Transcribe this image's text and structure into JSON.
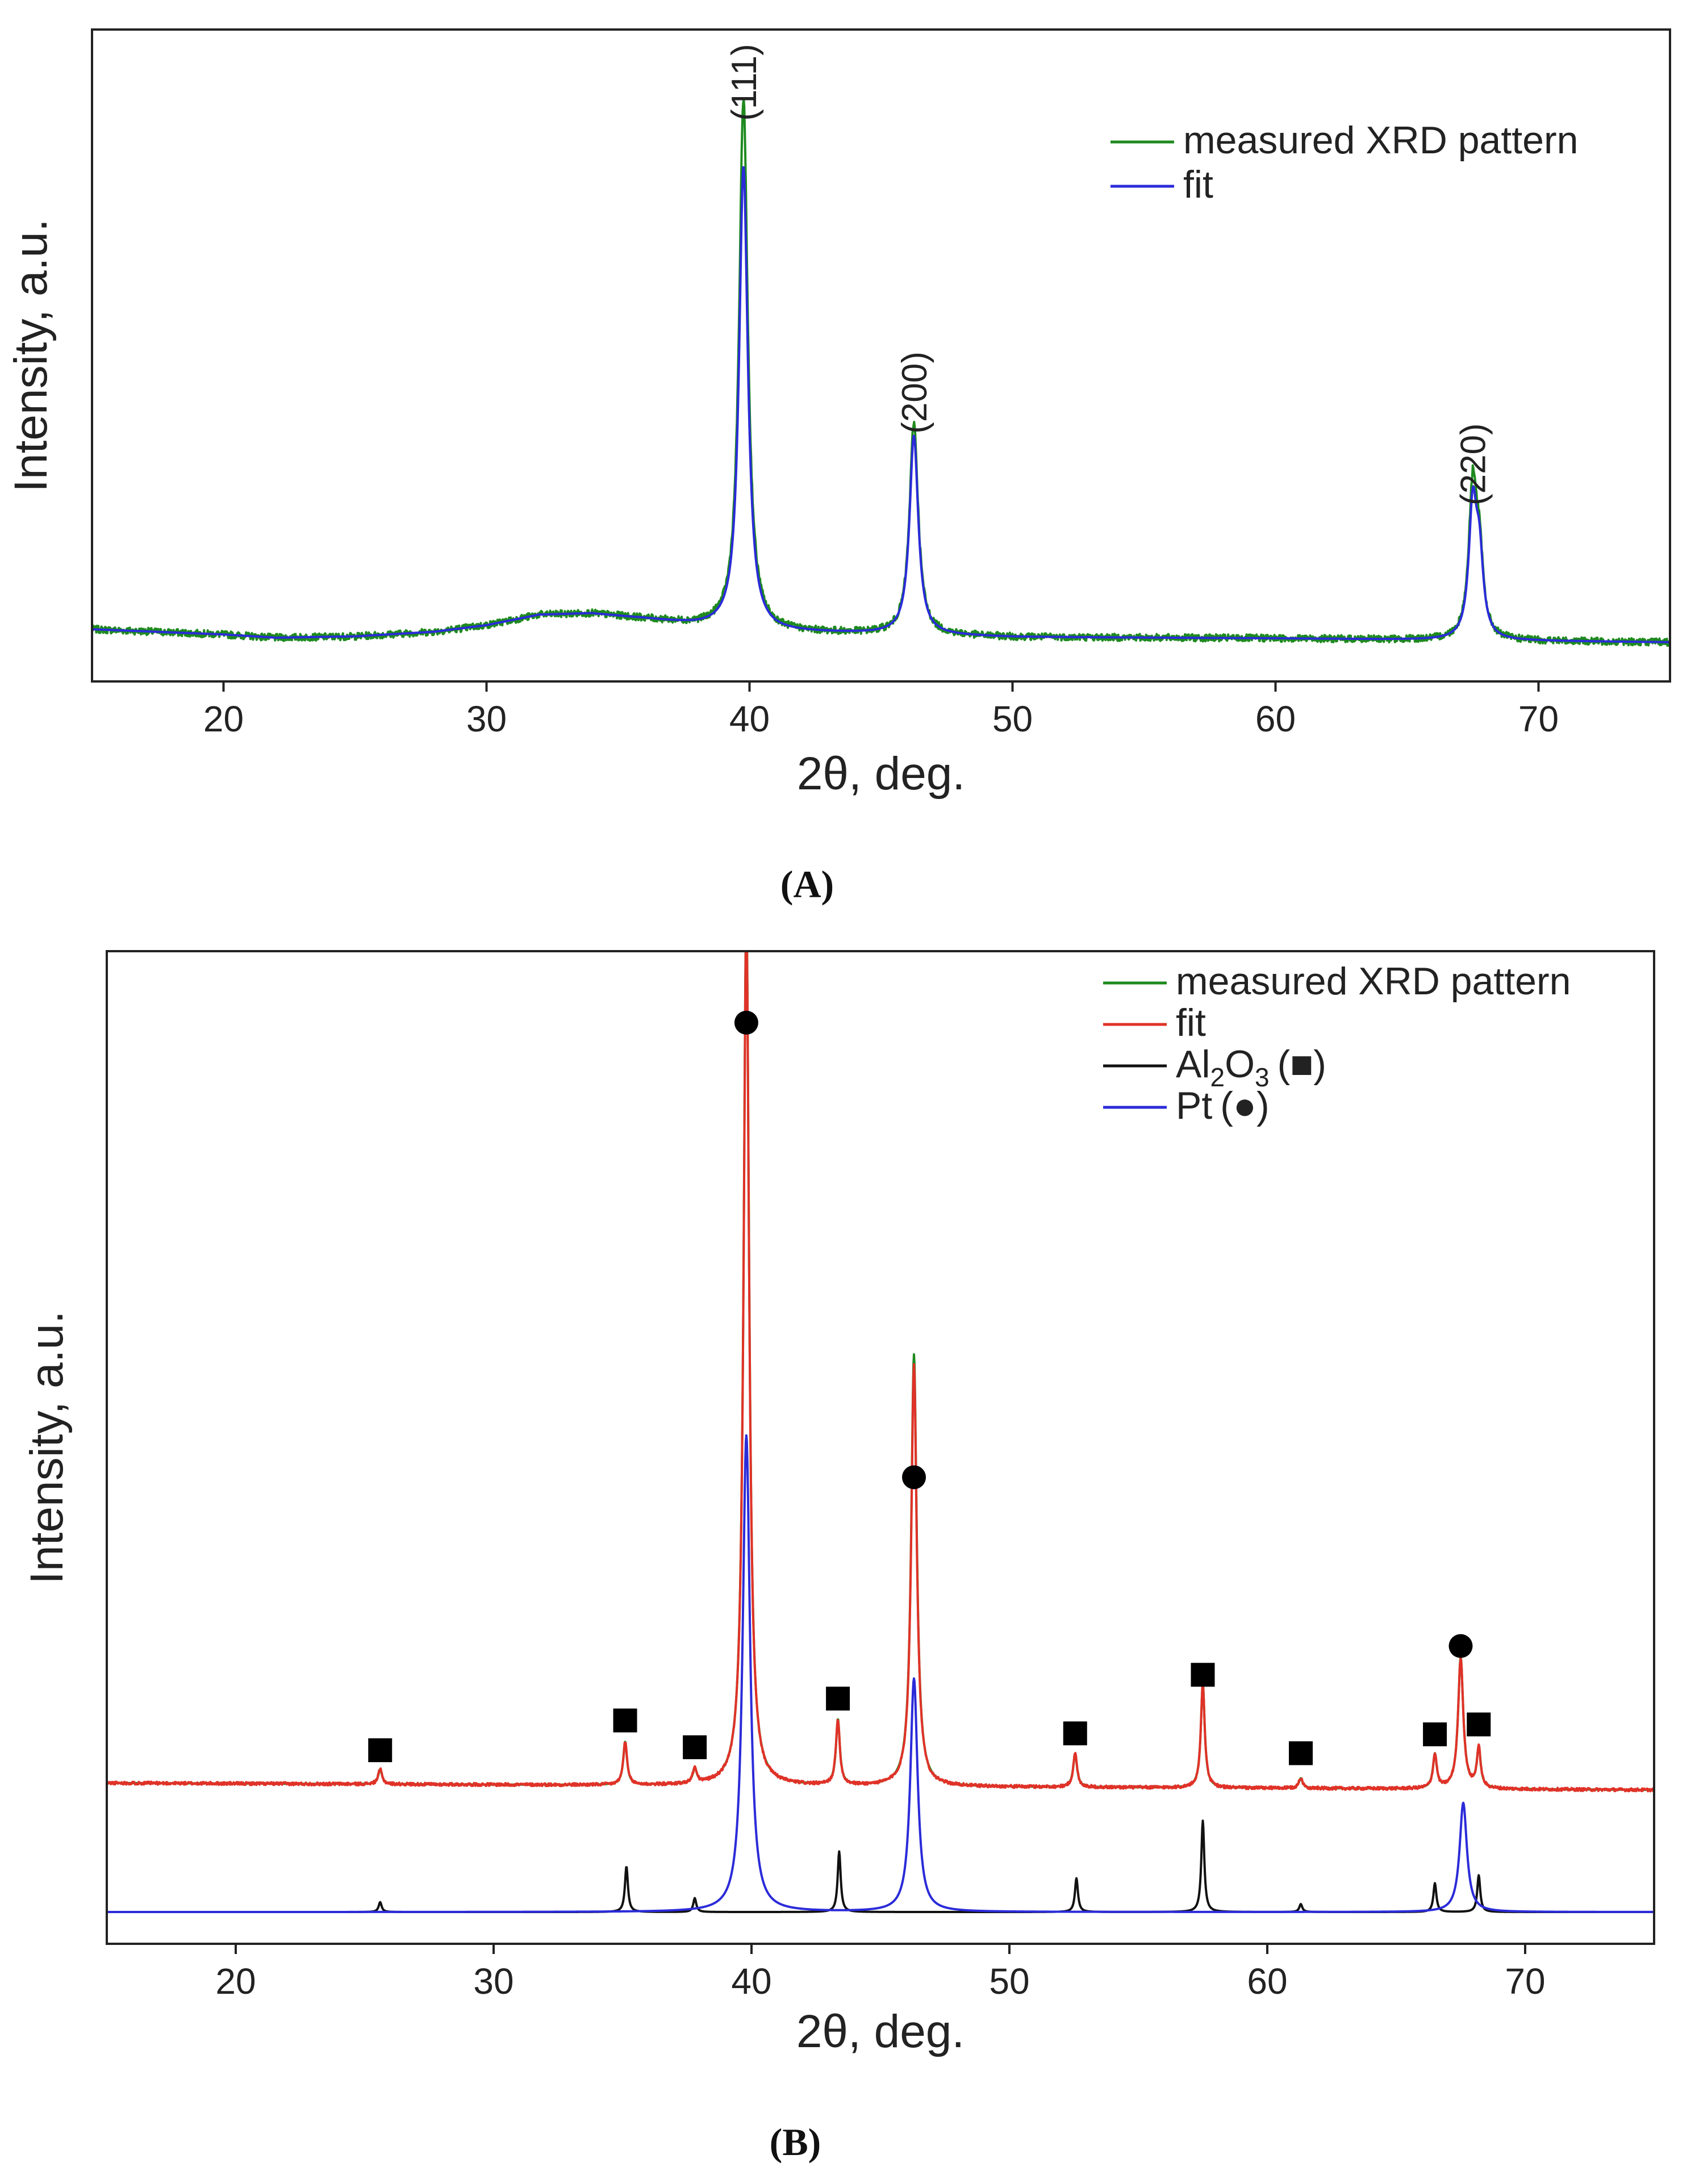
{
  "chart_data": [
    {
      "panel": "A",
      "caption": "(A)",
      "type": "line",
      "xlabel": "2θ, deg.",
      "ylabel": "Intensity, a.u.",
      "xlim": [
        15,
        75
      ],
      "ylim": [
        0,
        100
      ],
      "xticks": [
        20,
        30,
        40,
        50,
        60,
        70
      ],
      "legend_position": "top-right",
      "series": [
        {
          "name": "measured XRD pattern",
          "color": "#1e8a1e",
          "baseline": [
            [
              15,
              8
            ],
            [
              20,
              7.2
            ],
            [
              22,
              6.7
            ],
            [
              25,
              6.9
            ],
            [
              28,
              7.6
            ],
            [
              30,
              8.6
            ],
            [
              32,
              10.2
            ],
            [
              34,
              10.4
            ],
            [
              36,
              9.6
            ],
            [
              38,
              8.6
            ],
            [
              41,
              7.6
            ],
            [
              45,
              7.3
            ],
            [
              50,
              6.8
            ],
            [
              55,
              6.7
            ],
            [
              60,
              6.6
            ],
            [
              65,
              6.4
            ],
            [
              70,
              6.2
            ],
            [
              75,
              6.0
            ]
          ],
          "peaks": [
            {
              "center": 39.77,
              "height": 81.5,
              "width": 0.2
            },
            {
              "center": 46.25,
              "height": 32.5,
              "width": 0.2
            },
            {
              "center": 67.5,
              "height": 22.5,
              "width": 0.18
            },
            {
              "center": 67.75,
              "height": 11.5,
              "width": 0.18
            }
          ],
          "noise": 0.55
        },
        {
          "name": "fit",
          "color": "#2b2bd9",
          "baseline": [
            [
              15,
              8
            ],
            [
              20,
              7.2
            ],
            [
              22,
              6.7
            ],
            [
              25,
              6.9
            ],
            [
              28,
              7.6
            ],
            [
              30,
              8.6
            ],
            [
              32,
              10.2
            ],
            [
              34,
              10.4
            ],
            [
              36,
              9.6
            ],
            [
              38,
              8.6
            ],
            [
              41,
              7.6
            ],
            [
              45,
              7.3
            ],
            [
              50,
              6.8
            ],
            [
              55,
              6.7
            ],
            [
              60,
              6.6
            ],
            [
              65,
              6.4
            ],
            [
              70,
              6.2
            ],
            [
              75,
              6.0
            ]
          ],
          "peaks": [
            {
              "center": 39.77,
              "height": 71.0,
              "width": 0.2
            },
            {
              "center": 46.25,
              "height": 30.5,
              "width": 0.2
            },
            {
              "center": 67.5,
              "height": 19.5,
              "width": 0.18
            },
            {
              "center": 67.75,
              "height": 11.5,
              "width": 0.18
            }
          ],
          "noise": 0
        }
      ],
      "annotations": [
        {
          "text": "(111)",
          "x": 39.77,
          "y": 86
        },
        {
          "text": "(200)",
          "x": 46.25,
          "y": 38
        },
        {
          "text": "(220)",
          "x": 67.5,
          "y": 27
        }
      ]
    },
    {
      "panel": "B",
      "caption": "(B)",
      "type": "line",
      "xlabel": "2θ, deg.",
      "ylabel": "Intensity, a.u.",
      "xlim": [
        15,
        75
      ],
      "ylim": [
        0,
        100
      ],
      "xticks": [
        20,
        30,
        40,
        50,
        60,
        70
      ],
      "legend_position": "top-right",
      "series": [
        {
          "name": "measured XRD pattern",
          "color": "#1e8a1e",
          "baseline": [
            [
              15,
              16.2
            ],
            [
              75,
              15.5
            ]
          ],
          "peaks": [
            {
              "center": 25.6,
              "height": 1.5,
              "width": 0.09
            },
            {
              "center": 35.1,
              "height": 4.3,
              "width": 0.09
            },
            {
              "center": 37.8,
              "height": 1.5,
              "width": 0.09
            },
            {
              "center": 39.8,
              "height": 88.5,
              "width": 0.13
            },
            {
              "center": 43.35,
              "height": 6.6,
              "width": 0.09
            },
            {
              "center": 46.3,
              "height": 43.5,
              "width": 0.13
            },
            {
              "center": 52.55,
              "height": 3.4,
              "width": 0.09
            },
            {
              "center": 57.5,
              "height": 10.5,
              "width": 0.09
            },
            {
              "center": 61.3,
              "height": 1.0,
              "width": 0.09
            },
            {
              "center": 66.5,
              "height": 3.4,
              "width": 0.09
            },
            {
              "center": 67.5,
              "height": 13.2,
              "width": 0.12
            },
            {
              "center": 68.2,
              "height": 4.0,
              "width": 0.09
            }
          ],
          "noise": 0
        },
        {
          "name": "fit",
          "color": "#e03228",
          "baseline": [
            [
              15,
              16.2
            ],
            [
              75,
              15.5
            ]
          ],
          "peaks": [
            {
              "center": 25.6,
              "height": 1.5,
              "width": 0.09
            },
            {
              "center": 35.1,
              "height": 4.3,
              "width": 0.09
            },
            {
              "center": 37.8,
              "height": 1.5,
              "width": 0.09
            },
            {
              "center": 39.8,
              "height": 87.5,
              "width": 0.13
            },
            {
              "center": 43.35,
              "height": 6.6,
              "width": 0.09
            },
            {
              "center": 46.3,
              "height": 42.5,
              "width": 0.13
            },
            {
              "center": 52.55,
              "height": 3.4,
              "width": 0.09
            },
            {
              "center": 57.5,
              "height": 10.5,
              "width": 0.09
            },
            {
              "center": 61.3,
              "height": 1.0,
              "width": 0.09
            },
            {
              "center": 66.5,
              "height": 3.4,
              "width": 0.09
            },
            {
              "center": 67.5,
              "height": 13.2,
              "width": 0.12
            },
            {
              "center": 68.2,
              "height": 4.0,
              "width": 0.09
            }
          ],
          "noise": 0.15
        },
        {
          "name": "Al2O3 (■)",
          "legend_main": "Al",
          "legend_sub1": "2",
          "legend_mid": "O",
          "legend_sub2": "3",
          "legend_marker": "(■)",
          "color": "#111111",
          "baseline": [
            [
              15,
              3.2
            ],
            [
              75,
              3.2
            ]
          ],
          "peaks": [
            {
              "center": 25.6,
              "height": 1.0,
              "width": 0.07
            },
            {
              "center": 35.15,
              "height": 4.6,
              "width": 0.07
            },
            {
              "center": 37.8,
              "height": 1.4,
              "width": 0.07
            },
            {
              "center": 43.4,
              "height": 6.1,
              "width": 0.07
            },
            {
              "center": 52.6,
              "height": 3.4,
              "width": 0.07
            },
            {
              "center": 57.5,
              "height": 9.2,
              "width": 0.07
            },
            {
              "center": 61.3,
              "height": 0.8,
              "width": 0.07
            },
            {
              "center": 66.5,
              "height": 2.9,
              "width": 0.07
            },
            {
              "center": 68.2,
              "height": 3.7,
              "width": 0.07
            }
          ],
          "noise": 0
        },
        {
          "name": "Pt (●)",
          "legend_main": "Pt",
          "legend_marker": "(●)",
          "color": "#2b2bd9",
          "baseline": [
            [
              15,
              3.2
            ],
            [
              75,
              3.2
            ]
          ],
          "peaks": [
            {
              "center": 39.8,
              "height": 48.0,
              "width": 0.17
            },
            {
              "center": 46.3,
              "height": 23.5,
              "width": 0.17
            },
            {
              "center": 67.6,
              "height": 11.0,
              "width": 0.17
            }
          ],
          "noise": 0
        }
      ],
      "markers": [
        {
          "symbol": "square",
          "x": 25.6,
          "y": 19.5
        },
        {
          "symbol": "square",
          "x": 35.1,
          "y": 22.5
        },
        {
          "symbol": "square",
          "x": 37.8,
          "y": 19.8
        },
        {
          "symbol": "square",
          "x": 43.35,
          "y": 24.7
        },
        {
          "symbol": "square",
          "x": 52.55,
          "y": 21.2
        },
        {
          "symbol": "square",
          "x": 57.5,
          "y": 27.1
        },
        {
          "symbol": "square",
          "x": 61.3,
          "y": 19.2
        },
        {
          "symbol": "square",
          "x": 66.5,
          "y": 21.1
        },
        {
          "symbol": "square",
          "x": 68.2,
          "y": 22.1
        },
        {
          "symbol": "circle",
          "x": 39.8,
          "y": 92.8
        },
        {
          "symbol": "circle",
          "x": 46.3,
          "y": 47.0
        },
        {
          "symbol": "circle",
          "x": 67.5,
          "y": 30.0
        }
      ]
    }
  ]
}
